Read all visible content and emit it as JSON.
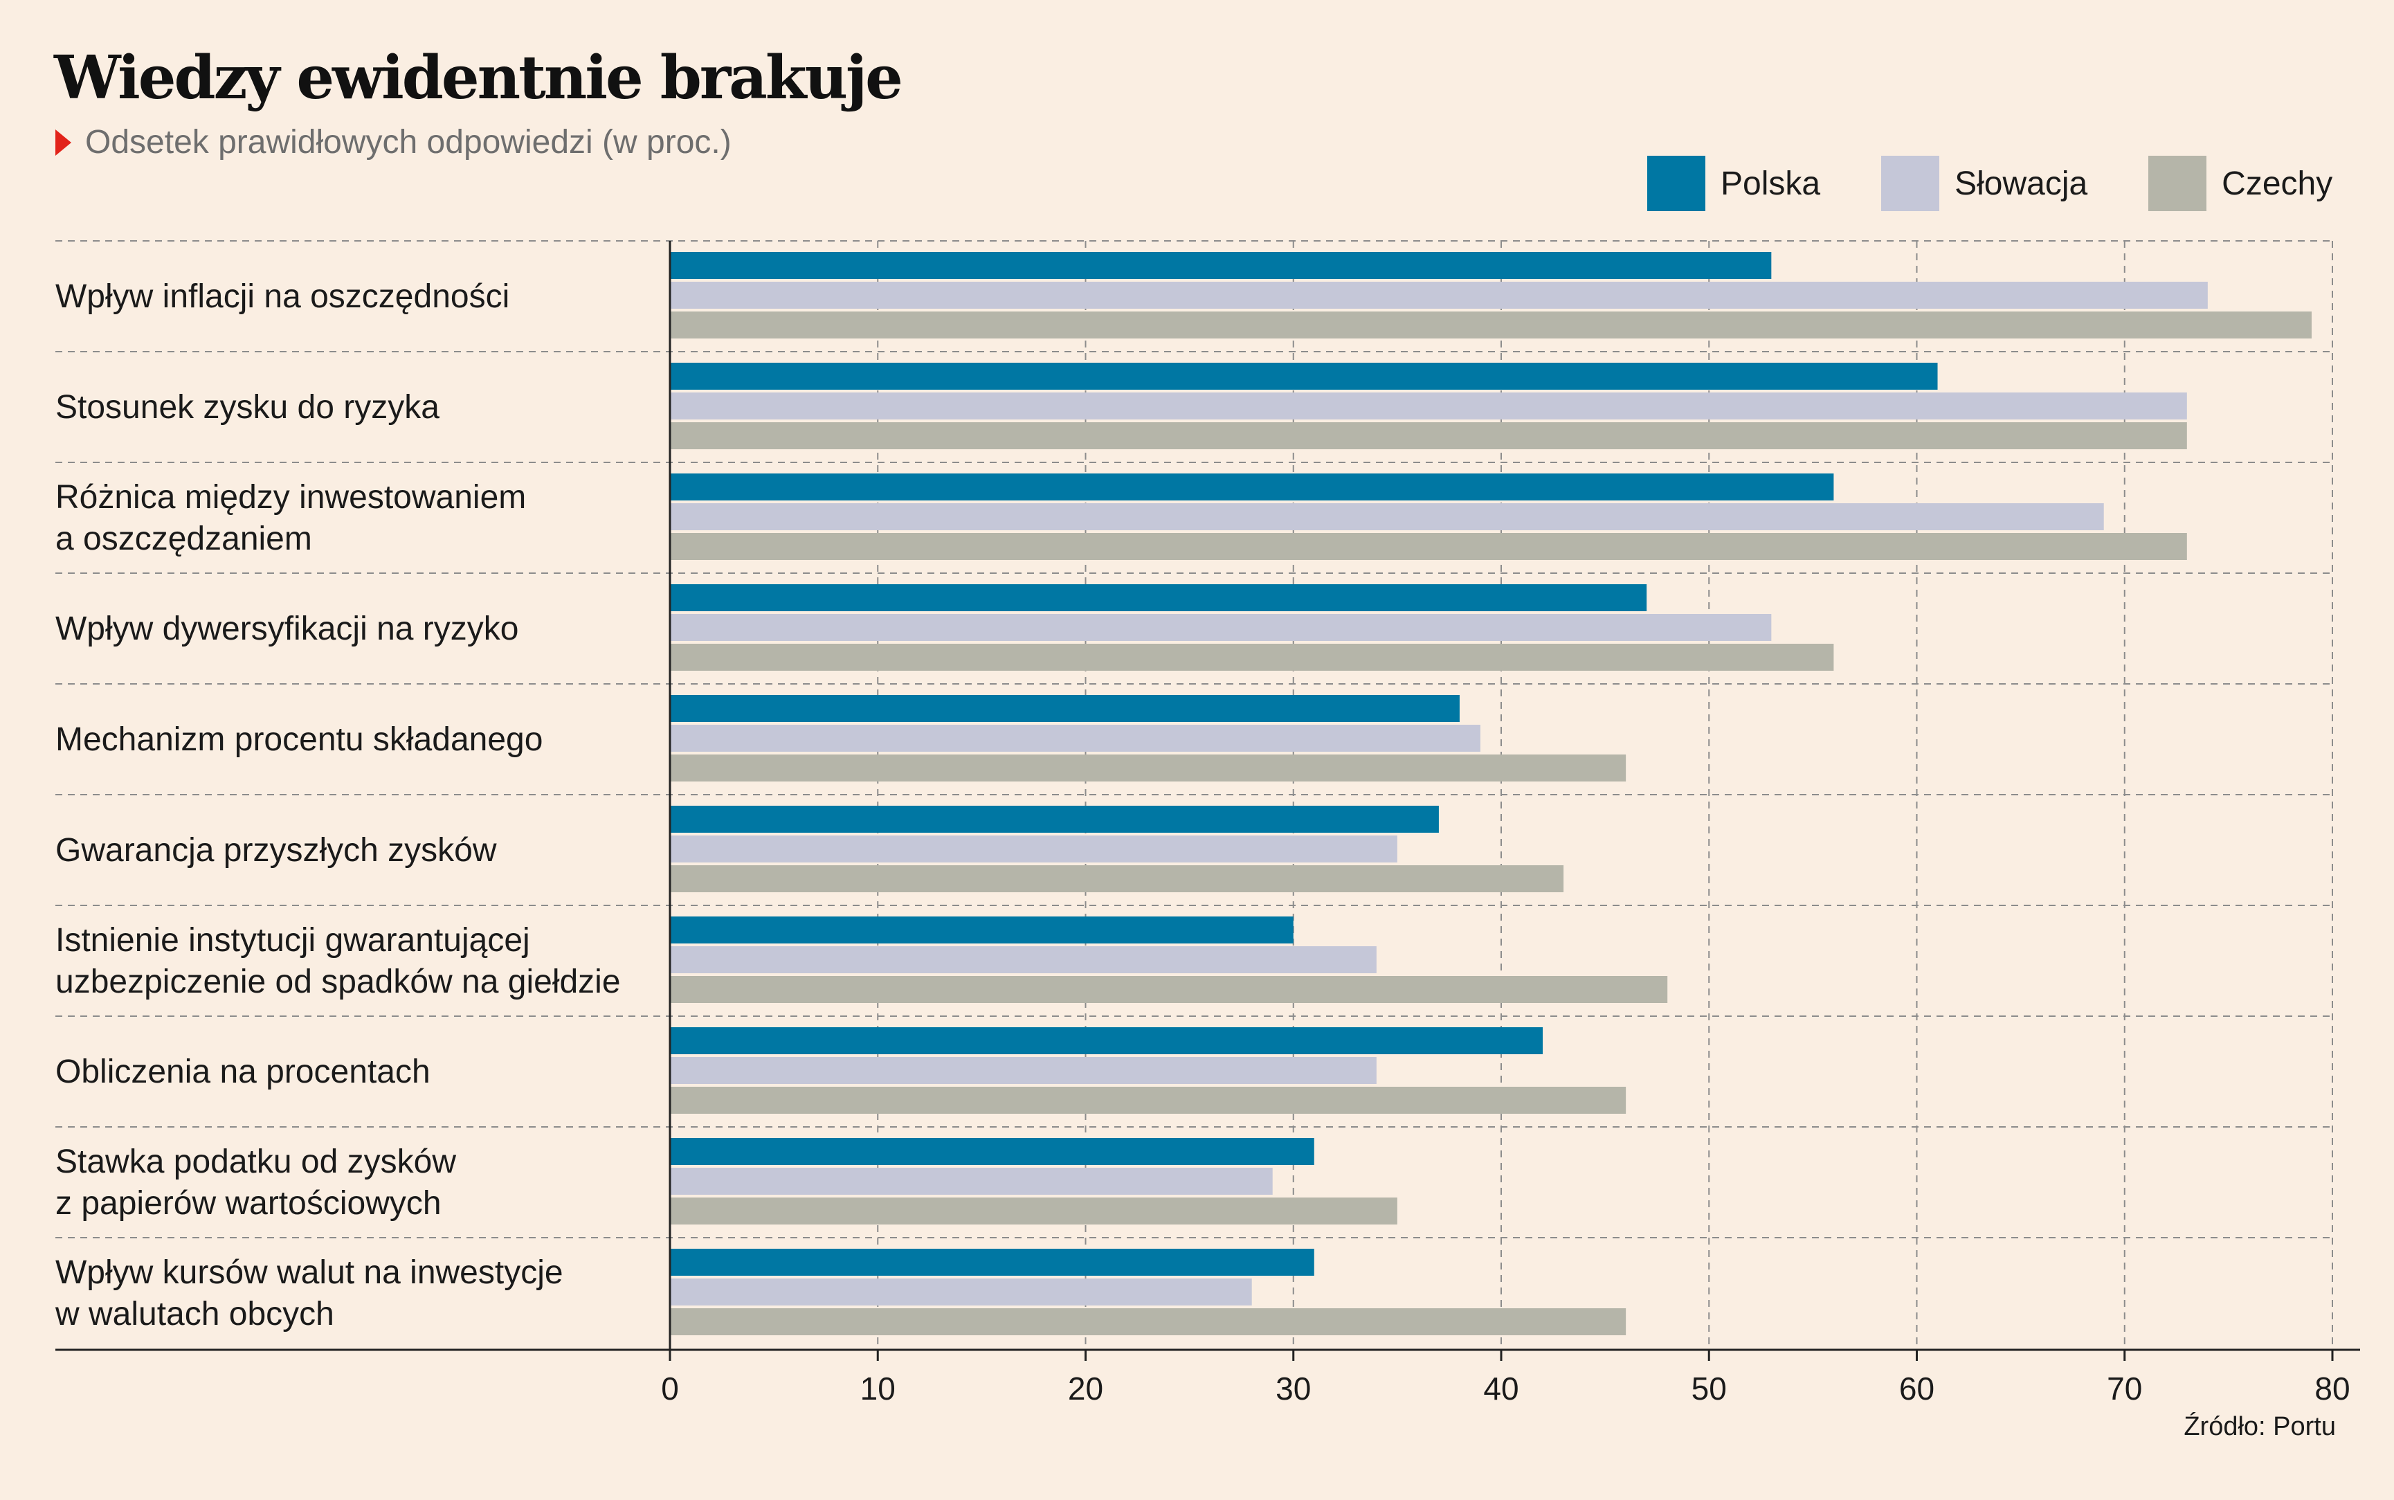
{
  "header": {
    "title": "Wiedzy ewidentnie brakuje",
    "subtitle": "Odsetek prawidłowych odpowiedzi (w proc.)"
  },
  "legend": [
    {
      "label": "Polska",
      "color": "#0077a3"
    },
    {
      "label": "Słowacja",
      "color": "#c5c7d8"
    },
    {
      "label": "Czechy",
      "color": "#b5b5a9"
    }
  ],
  "source": "Źródło: Portu",
  "colors": {
    "background": "#faeee2",
    "accent_marker": "#e2231a",
    "grid": "#8c8c8c"
  },
  "chart_data": {
    "type": "bar",
    "orientation": "horizontal",
    "title": "Wiedzy ewidentnie brakuje",
    "subtitle": "Odsetek prawidłowych odpowiedzi (w proc.)",
    "categories": [
      [
        "Wpływ inflacji na oszczędności"
      ],
      [
        "Stosunek zysku do ryzyka"
      ],
      [
        "Różnica między inwestowaniem",
        "a oszczędzaniem"
      ],
      [
        "Wpływ dywersyfikacji na ryzyko"
      ],
      [
        "Mechanizm procentu składanego"
      ],
      [
        "Gwarancja przyszłych zysków"
      ],
      [
        "Istnienie instytucji gwarantującej",
        "uzbezpiczenie od spadków na giełdzie"
      ],
      [
        "Obliczenia na procentach"
      ],
      [
        "Stawka podatku od zysków",
        "z papierów wartościowych"
      ],
      [
        "Wpływ kursów walut na inwestycje",
        "w walutach obcych"
      ]
    ],
    "series": [
      {
        "name": "Polska",
        "color": "#0077a3",
        "values": [
          53,
          61,
          56,
          47,
          38,
          37,
          30,
          42,
          31,
          31
        ]
      },
      {
        "name": "Słowacja",
        "color": "#c5c7d8",
        "values": [
          74,
          73,
          69,
          53,
          39,
          35,
          34,
          34,
          29,
          28
        ]
      },
      {
        "name": "Czechy",
        "color": "#b5b5a9",
        "values": [
          79,
          73,
          73,
          56,
          46,
          43,
          48,
          46,
          35,
          46
        ]
      }
    ],
    "xlim": [
      0,
      80
    ],
    "xticks": [
      "0",
      "10",
      "20",
      "30",
      "40",
      "50",
      "60",
      "70",
      "80"
    ],
    "grid": true,
    "legend_position": "top-right"
  }
}
